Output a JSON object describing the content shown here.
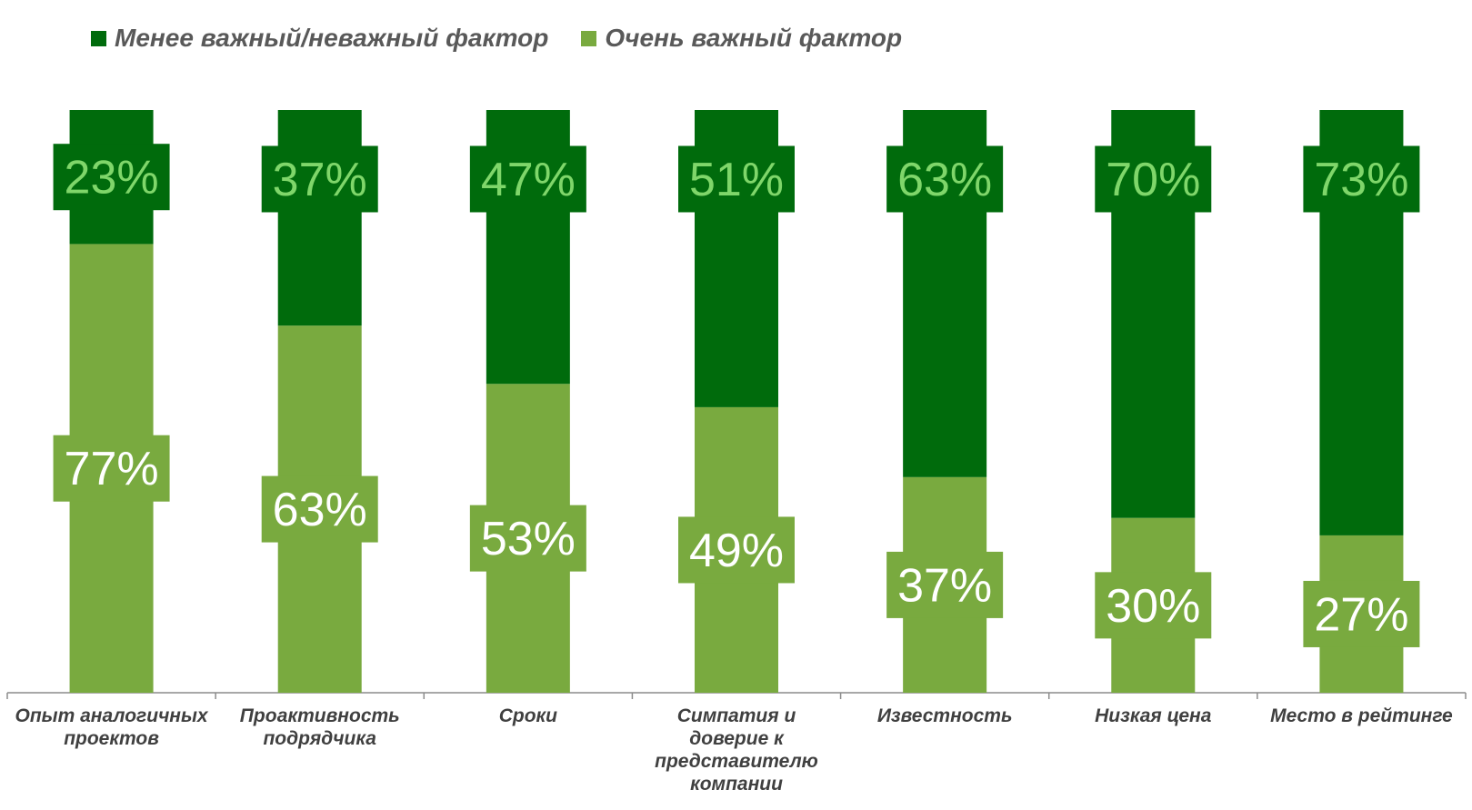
{
  "chart_data": {
    "type": "bar",
    "stacked": true,
    "percent_stacked": true,
    "categories": [
      [
        "Опыт аналогичных",
        "проектов"
      ],
      [
        "Проактивность",
        "подрядчика"
      ],
      [
        "Сроки"
      ],
      [
        "Симпатия и",
        "доверие к",
        "представителю",
        "компании"
      ],
      [
        "Известность"
      ],
      [
        "Низкая цена"
      ],
      [
        "Место в  рейтинге"
      ]
    ],
    "series": [
      {
        "name": "Менее важный/неважный фактор",
        "color": "#006b0c",
        "label_color": "#7fd66a",
        "values": [
          23,
          37,
          47,
          51,
          63,
          70,
          73
        ],
        "labels": [
          "23%",
          "37%",
          "47%",
          "51%",
          "63%",
          "70%",
          "73%"
        ]
      },
      {
        "name": "Очень важный фактор",
        "color": "#79aa3f",
        "label_color": "#ffffff",
        "values": [
          77,
          63,
          53,
          49,
          37,
          30,
          27
        ],
        "labels": [
          "77%",
          "63%",
          "53%",
          "49%",
          "37%",
          "30%",
          "27%"
        ]
      }
    ],
    "ylim": [
      0,
      100
    ],
    "legend_position": "top-left",
    "grid": false
  }
}
